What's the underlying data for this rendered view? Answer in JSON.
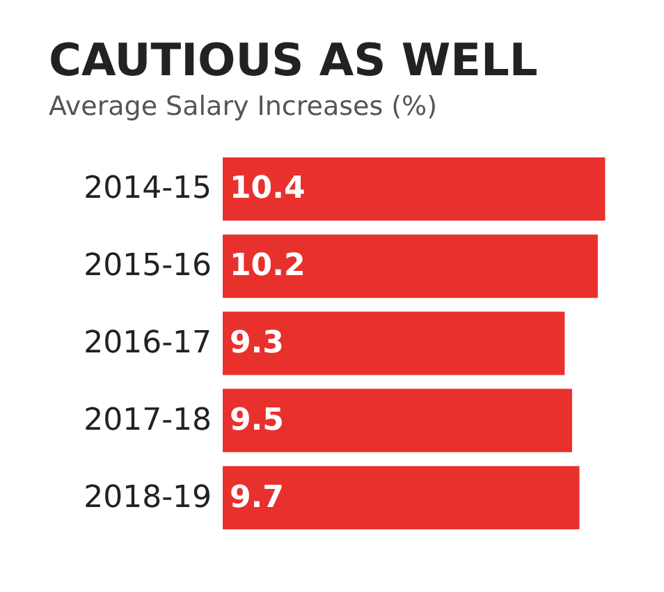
{
  "chart_data": {
    "type": "bar",
    "orientation": "horizontal",
    "title": "CAUTIOUS AS WELL",
    "subtitle": "Average Salary Increases (%)",
    "categories": [
      "2014-15",
      "2015-16",
      "2016-17",
      "2017-18",
      "2018-19"
    ],
    "values": [
      10.4,
      10.2,
      9.3,
      9.5,
      9.7
    ],
    "color": "#e8312d",
    "data_labels": true
  }
}
